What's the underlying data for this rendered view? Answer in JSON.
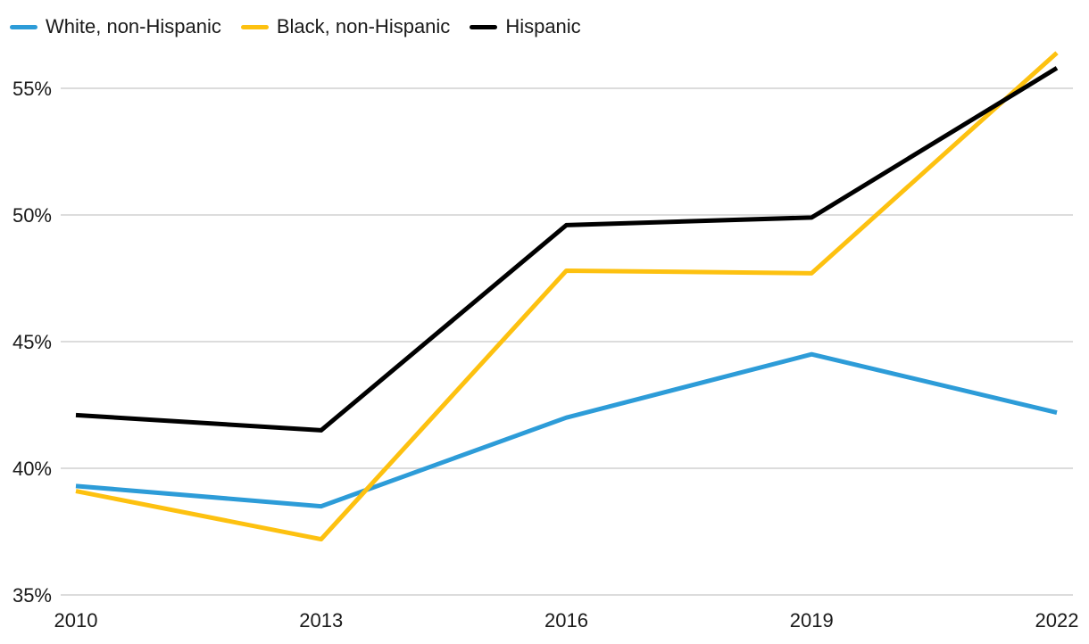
{
  "chart_data": {
    "type": "line",
    "title": "",
    "xlabel": "",
    "ylabel": "",
    "x": [
      2010,
      2013,
      2016,
      2019,
      2022
    ],
    "x_tick_labels": [
      "2010",
      "2013",
      "2016",
      "2019",
      "2022"
    ],
    "y_ticks": [
      35,
      40,
      45,
      50,
      55
    ],
    "y_tick_labels": [
      "35%",
      "40%",
      "45%",
      "50%",
      "55%"
    ],
    "ylim": [
      35,
      57.5
    ],
    "grid": "horizontal-only",
    "legend_position": "top-left",
    "series": [
      {
        "name": "White, non-Hispanic",
        "color": "#2D9CD8",
        "values": [
          39.3,
          38.5,
          42.0,
          44.5,
          42.2
        ]
      },
      {
        "name": "Black, non-Hispanic",
        "color": "#FDC110",
        "values": [
          39.1,
          37.2,
          47.8,
          47.7,
          56.4
        ]
      },
      {
        "name": "Hispanic",
        "color": "#000000",
        "values": [
          42.1,
          41.5,
          49.6,
          49.9,
          55.8
        ]
      }
    ],
    "colors": {
      "gridline": "#DCDCDC",
      "axis_text": "#1A1A1A",
      "background": "#FFFFFF"
    }
  }
}
